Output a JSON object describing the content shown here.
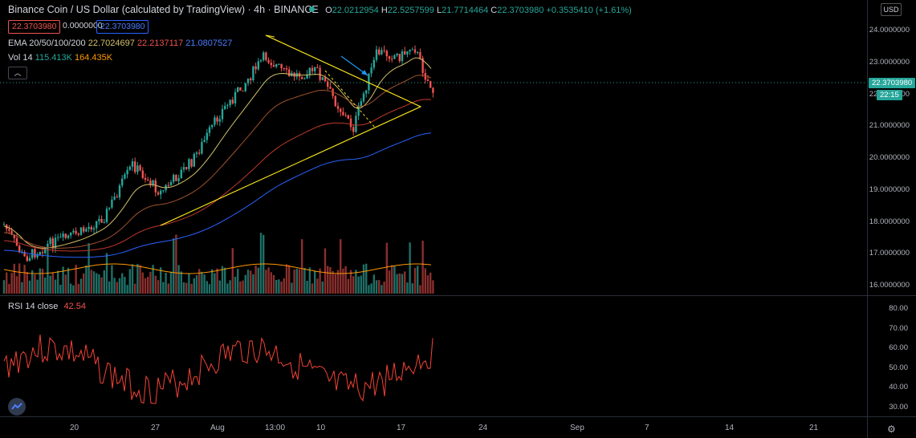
{
  "header": {
    "title": "Binance Coin / US Dollar (calculated by TradingView) · 4h · BINANCE",
    "ohlc": {
      "open_label": "O",
      "open": "22.0212954",
      "high_label": "H",
      "high": "22.5257599",
      "low_label": "L",
      "low": "21.7714464",
      "close_label": "C",
      "close": "22.3703980",
      "change": "+0.3535410 (+1.61%)"
    },
    "price_boxes": [
      "22.3703980",
      "0.0000000",
      "22.3703980"
    ]
  },
  "indicators": {
    "ema_label": "EMA 20/50/100/200",
    "ema_values": [
      "22.7024697",
      "22.2137117",
      "21.0807527"
    ],
    "vol_label": "Vol 14",
    "vol_values": [
      "115.413K",
      "164.435K"
    ],
    "collapse_glyph": "︿",
    "rsi_label": "RSI 14 close",
    "rsi_value": "42.54"
  },
  "axes": {
    "currency_button": "USD",
    "price_ticks": [
      "24.0000000",
      "23.0000000",
      "22.0000000",
      "21.0000000",
      "20.0000000",
      "19.0000000",
      "18.0000000",
      "17.0000000",
      "16.0000000"
    ],
    "rsi_ticks": [
      "80.00",
      "70.00",
      "60.00",
      "50.00",
      "40.00",
      "30.00"
    ],
    "current_price_badge": "22.3703980",
    "countdown_badge": "22:15",
    "time_ticks": [
      "20",
      "27",
      "Aug",
      "13:00",
      "10",
      "17",
      "24",
      "Sep",
      "7",
      "14",
      "21"
    ]
  },
  "colors": {
    "up": "#26a69a",
    "down": "#ef5350",
    "ema20": "#d4c16a",
    "ema50": "#a0522d",
    "ema100": "#c0392b",
    "ema200": "#2962ff",
    "triangle": "#f5e21b",
    "arrow": "#2196f3",
    "rsi": "#f44336"
  },
  "icons": {
    "status_dot": "green-dot-icon",
    "settings": "gear-icon",
    "logo": "tradingview-logo-icon"
  }
}
